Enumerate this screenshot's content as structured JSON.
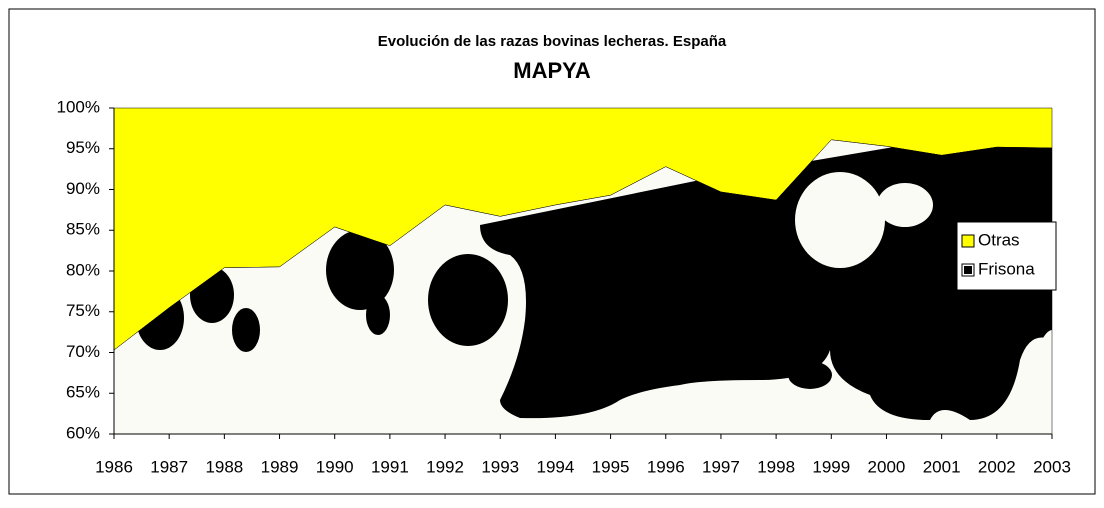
{
  "chart_data": {
    "type": "stacked_area_percent",
    "title": "Evolución de las razas bovinas lecheras. España",
    "subtitle": "MAPYA",
    "categories": [
      "1986",
      "1987",
      "1988",
      "1989",
      "1990",
      "1991",
      "1992",
      "1993",
      "1994",
      "1995",
      "1996",
      "1997",
      "1998",
      "1999",
      "2000",
      "2001",
      "2002",
      "2003"
    ],
    "series": [
      {
        "name": "Frisona",
        "color": "#000000",
        "values": [
          70.3,
          75.5,
          80.4,
          80.5,
          85.4,
          83.1,
          88.1,
          86.7,
          88.1,
          89.3,
          92.8,
          89.7,
          88.7,
          96.1,
          95.3,
          94.2,
          95.2,
          95.1
        ]
      },
      {
        "name": "Otras",
        "color": "#ffff00",
        "values": [
          29.7,
          24.5,
          19.6,
          19.5,
          14.6,
          16.9,
          11.9,
          13.3,
          11.9,
          10.7,
          7.2,
          10.3,
          11.3,
          3.9,
          4.7,
          5.8,
          4.8,
          4.9
        ]
      }
    ],
    "ylim": [
      60,
      100
    ],
    "yticks": [
      {
        "value": 60,
        "label": "60%"
      },
      {
        "value": 65,
        "label": "65%"
      },
      {
        "value": 70,
        "label": "70%"
      },
      {
        "value": 75,
        "label": "75%"
      },
      {
        "value": 80,
        "label": "80%"
      },
      {
        "value": 85,
        "label": "85%"
      },
      {
        "value": 90,
        "label": "90%"
      },
      {
        "value": 95,
        "label": "95%"
      },
      {
        "value": 100,
        "label": "100%"
      }
    ],
    "legend": "right"
  }
}
